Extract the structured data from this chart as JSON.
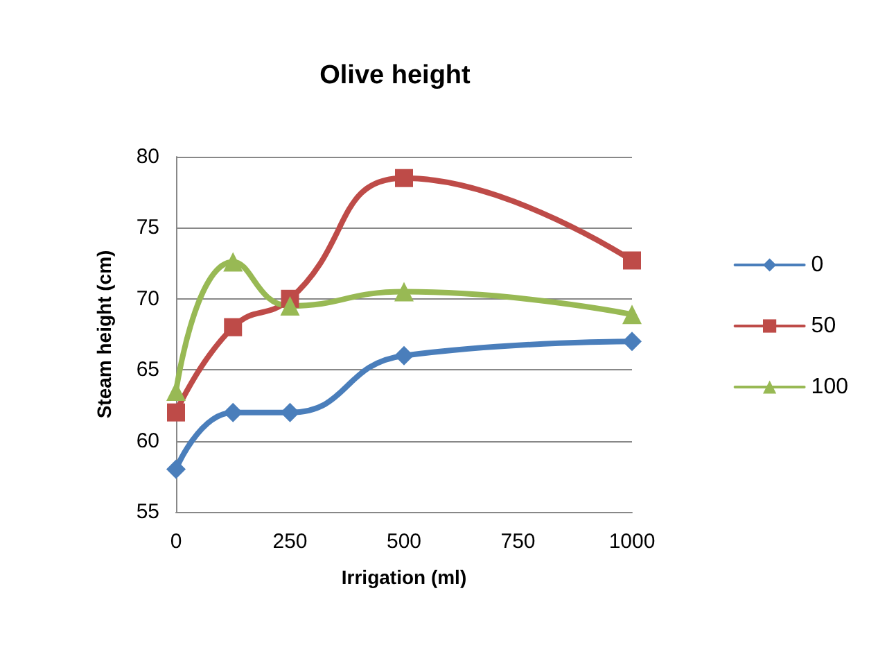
{
  "chart_data": {
    "type": "line",
    "title": "Olive height",
    "xlabel": "Irrigation (ml)",
    "ylabel": "Steam height (cm)",
    "x": [
      0,
      125,
      250,
      500,
      1000
    ],
    "series": [
      {
        "name": "0",
        "color": "#4a7ebb",
        "marker": "diamond",
        "values": [
          58,
          62,
          62,
          66,
          67
        ]
      },
      {
        "name": "50",
        "color": "#be4b48",
        "marker": "square",
        "values": [
          62,
          68,
          70,
          78.5,
          72.7
        ]
      },
      {
        "name": "100",
        "color": "#98b954",
        "marker": "triangle",
        "values": [
          63.5,
          72.6,
          69.5,
          70.5,
          68.9
        ]
      }
    ],
    "xlim": [
      0,
      1000
    ],
    "xticks": [
      0,
      250,
      500,
      750,
      1000
    ],
    "ylim": [
      55,
      80
    ],
    "yticks": [
      55,
      60,
      65,
      70,
      75,
      80
    ],
    "grid": "y",
    "legend": "right"
  }
}
